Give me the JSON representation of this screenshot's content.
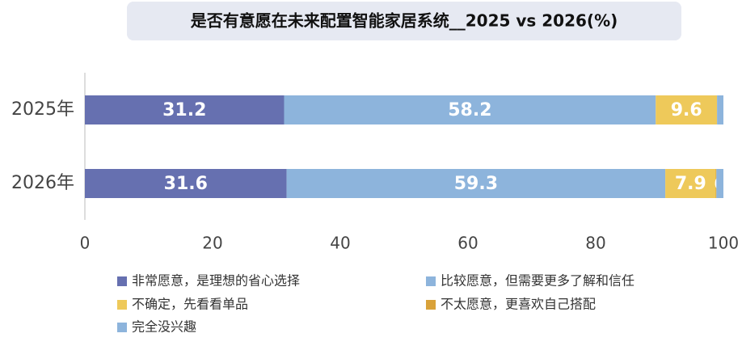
{
  "chart_data": {
    "type": "stacked-bar-horizontal",
    "title": "是否有意愿在未来配置智能家居系统__2025 vs 2026(%)",
    "categories": [
      "2025年",
      "2026年"
    ],
    "series": [
      {
        "name": "非常愿意，是理想的省心选择",
        "color": "#6670b0",
        "values": [
          31.2,
          31.6
        ]
      },
      {
        "name": "比较愿意，但需要更多了解和信任",
        "color": "#8db4dc",
        "values": [
          58.2,
          59.3
        ]
      },
      {
        "name": "不确定，先看看单品",
        "color": "#eec95a",
        "values": [
          9.6,
          7.9
        ]
      },
      {
        "name": "不太愿意，更喜欢自己搭配",
        "color": "#d9a23a",
        "values": [
          0,
          0.1
        ]
      },
      {
        "name": "完全没兴趣",
        "color": "#8db4dc",
        "values": [
          1.0,
          1.1
        ],
        "labels": false
      }
    ],
    "xlim": [
      0,
      100
    ],
    "xticks": [
      0,
      20,
      40,
      60,
      80,
      100
    ]
  }
}
